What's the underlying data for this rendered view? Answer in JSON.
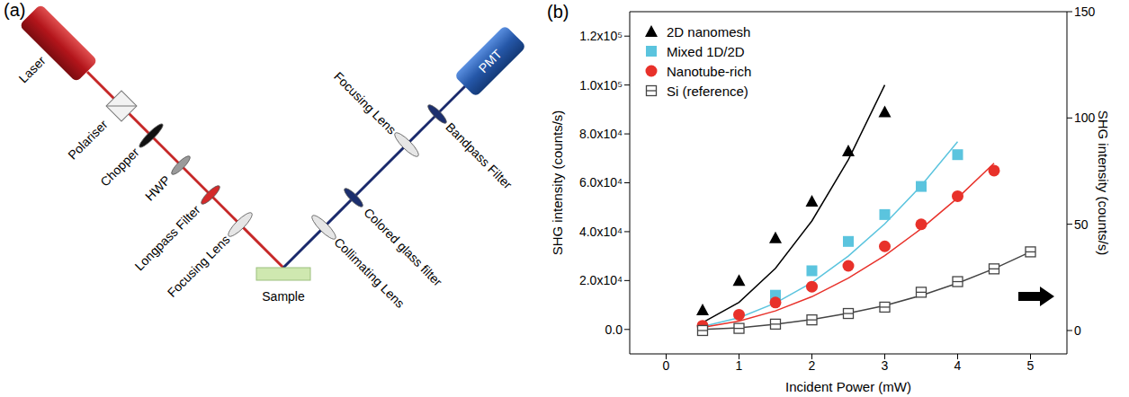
{
  "diagram": {
    "panel_label": "(a)",
    "labels": [
      "Laser",
      "Polariser",
      "Chopper",
      "HWP",
      "Longpass Filter",
      "Focusing Lens",
      "Sample",
      "Collimating Lens",
      "Colored glass filter",
      "Focusing Lens",
      "Bandpass Filter",
      "PMT"
    ]
  },
  "chart_data": {
    "type": "scatter",
    "panel_label": "(b)",
    "x_label": "Incident Power (mW)",
    "y_label": "SHG intensity (counts/s)",
    "y2_label": "SHG intensity (counts/s)",
    "xlim": [
      -0.5,
      5.5
    ],
    "xticks": [
      0,
      1,
      2,
      3,
      4,
      5
    ],
    "ylim": [
      -10000,
      130000
    ],
    "yticks": [
      {
        "value": 0,
        "label": "0.0"
      },
      {
        "value": 20000,
        "label": "2.0x10⁴"
      },
      {
        "value": 40000,
        "label": "4.0x10⁴"
      },
      {
        "value": 60000,
        "label": "6.0x10⁴"
      },
      {
        "value": 80000,
        "label": "8.0x10⁴"
      },
      {
        "value": 100000,
        "label": "1.0x10⁵"
      },
      {
        "value": 120000,
        "label": "1.2x10⁵"
      }
    ],
    "y2lim": [
      -11,
      150
    ],
    "y2ticks": [
      0,
      50,
      100,
      150
    ],
    "legend": "upper left",
    "series": [
      {
        "name": "2D nanomesh",
        "color": "#000000",
        "marker": "triangle",
        "x": [
          0.5,
          1,
          1.5,
          2,
          2.5,
          3
        ],
        "values": [
          8000,
          20000,
          37500,
          52500,
          73000,
          89000
        ],
        "fit_x": [
          0.5,
          1,
          1.5,
          2,
          2.5,
          3
        ],
        "fit": [
          2800,
          11100,
          25000,
          44400,
          69400,
          100000
        ]
      },
      {
        "name": "Mixed 1D/2D",
        "color": "#5bc4de",
        "marker": "square",
        "x": [
          1.5,
          2,
          2.5,
          3,
          3.5,
          4
        ],
        "values": [
          14000,
          24000,
          36000,
          47000,
          58500,
          71500
        ],
        "fit_x": [
          0.5,
          1,
          1.5,
          2,
          2.5,
          3,
          3.5,
          4
        ],
        "fit": [
          1200,
          4800,
          10800,
          19200,
          30000,
          43200,
          58800,
          76800
        ]
      },
      {
        "name": "Nanotube-rich",
        "color": "#e8312a",
        "marker": "circle",
        "x": [
          0.5,
          1,
          1.5,
          2,
          2.5,
          3,
          3.5,
          4,
          4.5
        ],
        "values": [
          1500,
          6000,
          11000,
          17500,
          26000,
          34000,
          43000,
          54500,
          65000
        ],
        "fit_x": [
          0.5,
          1,
          1.5,
          2,
          2.5,
          3,
          3.5,
          4,
          4.5
        ],
        "fit": [
          800,
          3400,
          7600,
          13400,
          21000,
          30200,
          41200,
          53800,
          68000
        ]
      },
      {
        "name": "Si (reference)",
        "color": "#444444",
        "marker": "open_square",
        "axis": "y2",
        "x": [
          0.5,
          1,
          1.5,
          2,
          2.5,
          3,
          3.5,
          4,
          4.5,
          5
        ],
        "values": [
          0,
          1,
          3,
          5,
          8,
          11,
          18,
          23,
          29,
          37
        ],
        "fit_x": [
          0.5,
          1,
          1.5,
          2,
          2.5,
          3,
          3.5,
          4,
          4.5,
          5
        ],
        "fit": [
          0.5,
          1.3,
          2.9,
          5.2,
          8.1,
          11.7,
          16.5,
          22.3,
          29.1,
          37
        ]
      }
    ]
  }
}
